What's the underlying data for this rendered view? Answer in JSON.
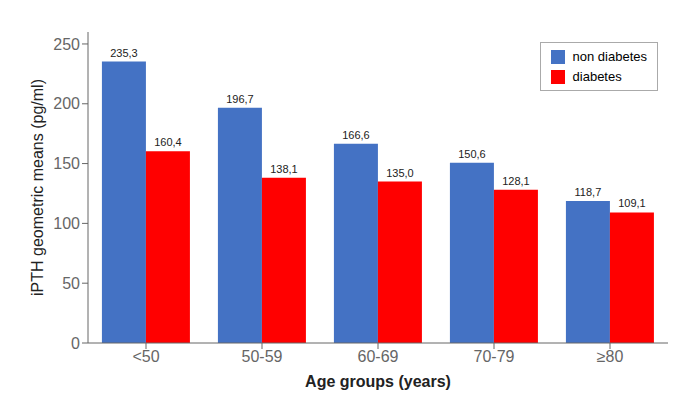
{
  "chart_data": {
    "type": "bar",
    "categories": [
      "<50",
      "50-59",
      "60-69",
      "70-79",
      "≥80"
    ],
    "series": [
      {
        "name": "non diabetes",
        "color": "#4472C4",
        "values": [
          235.3,
          196.7,
          166.6,
          150.6,
          118.7
        ],
        "value_labels": [
          "235,3",
          "196,7",
          "166,6",
          "150,6",
          "118,7"
        ]
      },
      {
        "name": "diabetes",
        "color": "#FF0000",
        "values": [
          160.4,
          138.1,
          135.0,
          128.1,
          109.1
        ],
        "value_labels": [
          "160,4",
          "138,1",
          "135,0",
          "128,1",
          "109,1"
        ]
      }
    ],
    "xlabel": "Age groups  (years)",
    "ylabel": "iPTH geometric means  (pg/ml)",
    "ylim": [
      0,
      260
    ],
    "yticks": [
      0,
      50,
      100,
      150,
      200,
      250
    ],
    "grid": false,
    "legend": "upper right",
    "data_labels": true
  }
}
